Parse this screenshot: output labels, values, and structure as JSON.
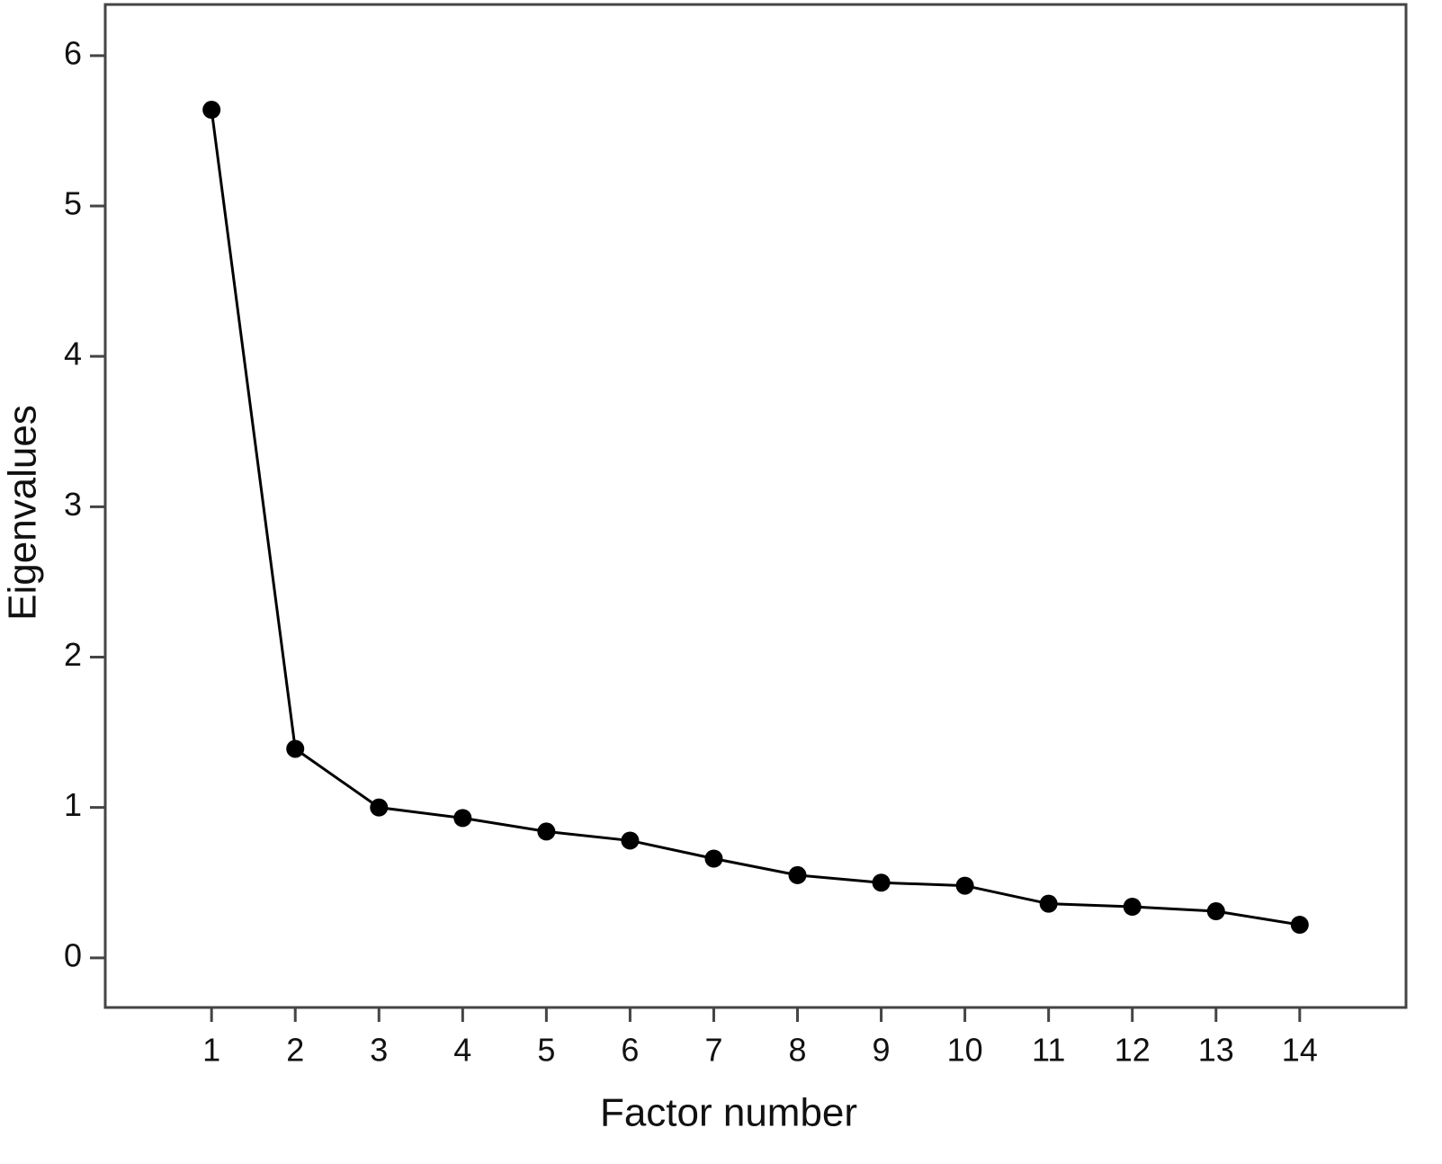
{
  "chart_data": {
    "type": "line",
    "x_label": "Factor number",
    "y_label": "Eigenvalues",
    "x": [
      1,
      2,
      3,
      4,
      5,
      6,
      7,
      8,
      9,
      10,
      11,
      12,
      13,
      14
    ],
    "values": [
      5.64,
      1.39,
      1.0,
      0.93,
      0.84,
      0.78,
      0.66,
      0.55,
      0.5,
      0.48,
      0.36,
      0.34,
      0.31,
      0.22
    ],
    "color": "#000000",
    "xlim": [
      -0.27,
      15.27
    ],
    "xticks": [
      1,
      2,
      3,
      4,
      5,
      6,
      7,
      8,
      9,
      10,
      11,
      12,
      13,
      14
    ],
    "ylim": [
      -0.33,
      6.34
    ],
    "yticks": [
      0,
      1,
      2,
      3,
      4,
      5,
      6
    ],
    "grid": false,
    "markers": true
  }
}
